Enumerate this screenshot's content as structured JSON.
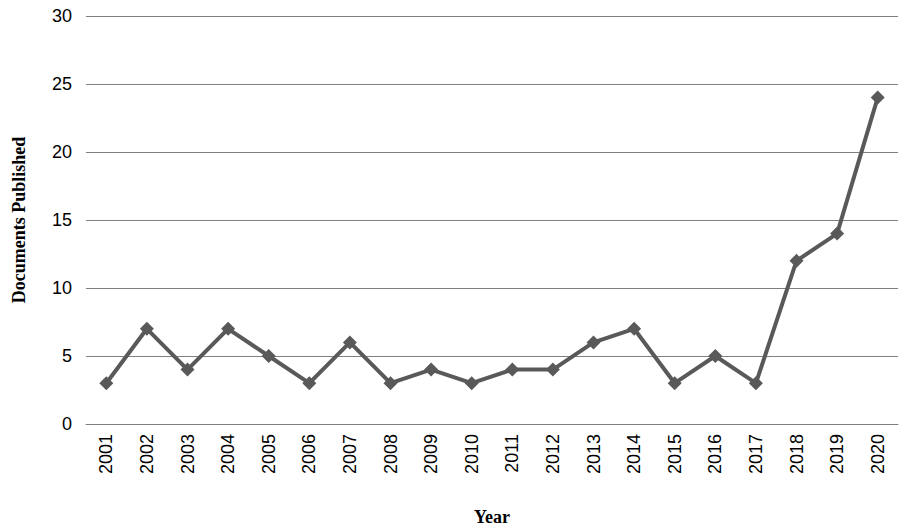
{
  "chart_data": {
    "type": "line",
    "x_label": "Year",
    "y_label": "Documents Published",
    "categories": [
      "2001",
      "2002",
      "2003",
      "2004",
      "2005",
      "2006",
      "2007",
      "2008",
      "2009",
      "2010",
      "2011",
      "2012",
      "2013",
      "2014",
      "2015",
      "2016",
      "2017",
      "2018",
      "2019",
      "2020"
    ],
    "values": [
      3,
      7,
      4,
      7,
      5,
      3,
      6,
      3,
      4,
      3,
      4,
      4,
      6,
      7,
      3,
      5,
      3,
      12,
      14,
      24
    ],
    "color": "#595959",
    "marker": "diamond",
    "line_style": "solid",
    "ylim": [
      0,
      30
    ],
    "yticks": [
      0,
      5,
      10,
      15,
      20,
      25,
      30
    ],
    "grid": true
  }
}
